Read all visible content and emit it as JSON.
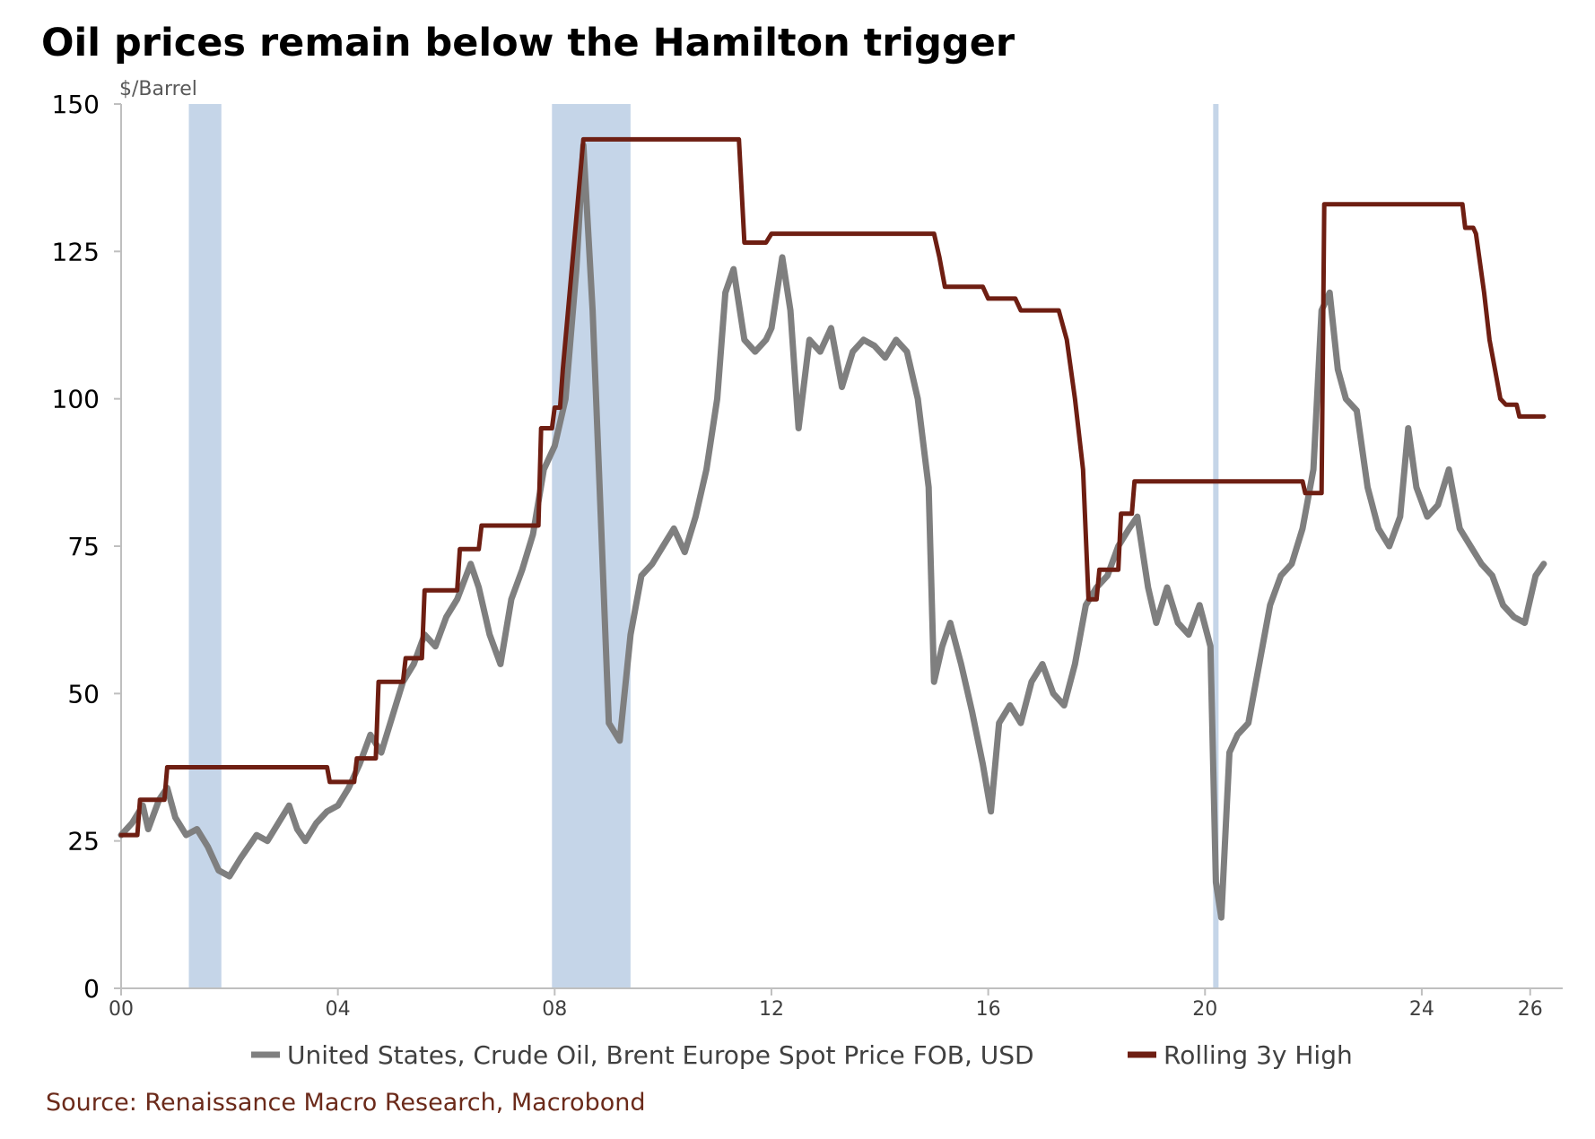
{
  "chart_data": {
    "type": "line",
    "title": "Oil prices remain below the Hamilton trigger",
    "ylabel": "$/Barrel",
    "xlabel": "",
    "ylim": [
      0,
      150
    ],
    "xlim": [
      2000,
      2026.6
    ],
    "yticks": [
      {
        "value": 0,
        "label": "0"
      },
      {
        "value": 25,
        "label": "25"
      },
      {
        "value": 50,
        "label": "50"
      },
      {
        "value": 75,
        "label": "75"
      },
      {
        "value": 100,
        "label": "100"
      },
      {
        "value": 125,
        "label": "125"
      },
      {
        "value": 150,
        "label": "150"
      }
    ],
    "xticks": [
      {
        "value": 2000,
        "label": "00"
      },
      {
        "value": 2004,
        "label": "04"
      },
      {
        "value": 2008,
        "label": "08"
      },
      {
        "value": 2012,
        "label": "12"
      },
      {
        "value": 2016,
        "label": "16"
      },
      {
        "value": 2020,
        "label": "20"
      },
      {
        "value": 2024,
        "label": "24"
      },
      {
        "value": 2026,
        "label": "26"
      }
    ],
    "recessions": [
      {
        "start": 2001.25,
        "end": 2001.85
      },
      {
        "start": 2007.95,
        "end": 2009.4
      },
      {
        "start": 2020.15,
        "end": 2020.25
      }
    ],
    "series": [
      {
        "name": "United States, Crude Oil, Brent Europe Spot Price FOB, USD",
        "color": "#7f7f7f",
        "x": [
          2000.0,
          2000.2,
          2000.4,
          2000.5,
          2000.7,
          2000.85,
          2001.0,
          2001.2,
          2001.4,
          2001.6,
          2001.8,
          2002.0,
          2002.2,
          2002.5,
          2002.7,
          2002.9,
          2003.1,
          2003.25,
          2003.4,
          2003.6,
          2003.8,
          2004.0,
          2004.2,
          2004.4,
          2004.6,
          2004.8,
          2005.0,
          2005.2,
          2005.4,
          2005.6,
          2005.8,
          2006.0,
          2006.2,
          2006.45,
          2006.6,
          2006.8,
          2007.0,
          2007.2,
          2007.4,
          2007.6,
          2007.8,
          2008.0,
          2008.2,
          2008.4,
          2008.53,
          2008.7,
          2008.85,
          2009.0,
          2009.2,
          2009.4,
          2009.6,
          2009.8,
          2010.0,
          2010.2,
          2010.4,
          2010.6,
          2010.8,
          2011.0,
          2011.15,
          2011.3,
          2011.5,
          2011.7,
          2011.9,
          2012.0,
          2012.2,
          2012.35,
          2012.5,
          2012.7,
          2012.9,
          2013.1,
          2013.3,
          2013.5,
          2013.7,
          2013.9,
          2014.1,
          2014.3,
          2014.5,
          2014.7,
          2014.9,
          2015.0,
          2015.15,
          2015.3,
          2015.5,
          2015.7,
          2015.9,
          2016.05,
          2016.2,
          2016.4,
          2016.6,
          2016.8,
          2017.0,
          2017.2,
          2017.4,
          2017.6,
          2017.8,
          2018.0,
          2018.2,
          2018.4,
          2018.6,
          2018.75,
          2018.95,
          2019.1,
          2019.3,
          2019.5,
          2019.7,
          2019.9,
          2020.1,
          2020.2,
          2020.3,
          2020.45,
          2020.6,
          2020.8,
          2021.0,
          2021.2,
          2021.4,
          2021.6,
          2021.8,
          2022.0,
          2022.15,
          2022.3,
          2022.45,
          2022.6,
          2022.8,
          2023.0,
          2023.2,
          2023.4,
          2023.6,
          2023.75,
          2023.9,
          2024.1,
          2024.3,
          2024.5,
          2024.7,
          2024.9,
          2025.1,
          2025.3,
          2025.5,
          2025.7,
          2025.9,
          2026.1,
          2026.25
        ],
        "values": [
          26,
          28,
          31,
          27,
          32,
          34,
          29,
          26,
          27,
          24,
          20,
          19,
          22,
          26,
          25,
          28,
          31,
          27,
          25,
          28,
          30,
          31,
          34,
          38,
          43,
          40,
          46,
          52,
          55,
          60,
          58,
          63,
          66,
          72,
          68,
          60,
          55,
          66,
          71,
          77,
          88,
          92,
          100,
          122,
          143,
          115,
          80,
          45,
          42,
          60,
          70,
          72,
          75,
          78,
          74,
          80,
          88,
          100,
          118,
          122,
          110,
          108,
          110,
          112,
          124,
          115,
          95,
          110,
          108,
          112,
          102,
          108,
          110,
          109,
          107,
          110,
          108,
          100,
          85,
          52,
          58,
          62,
          55,
          47,
          38,
          30,
          45,
          48,
          45,
          52,
          55,
          50,
          48,
          55,
          65,
          68,
          70,
          75,
          78,
          80,
          68,
          62,
          68,
          62,
          60,
          65,
          58,
          18,
          12,
          40,
          43,
          45,
          55,
          65,
          70,
          72,
          78,
          88,
          115,
          118,
          105,
          100,
          98,
          85,
          78,
          75,
          80,
          95,
          85,
          80,
          82,
          88,
          78,
          75,
          72,
          70,
          65,
          63,
          62,
          70,
          72
        ]
      },
      {
        "name": "Rolling 3y High",
        "color": "#6e1e12",
        "x": [
          2000.0,
          2000.3,
          2000.35,
          2000.8,
          2000.85,
          2003.8,
          2003.85,
          2004.3,
          2004.35,
          2004.7,
          2004.75,
          2005.2,
          2005.25,
          2005.55,
          2005.6,
          2006.2,
          2006.25,
          2006.6,
          2006.65,
          2007.7,
          2007.75,
          2007.95,
          2008.0,
          2008.1,
          2008.15,
          2008.53,
          2011.4,
          2011.5,
          2011.9,
          2012.0,
          2015.0,
          2015.1,
          2015.2,
          2015.9,
          2016.0,
          2016.5,
          2016.6,
          2017.3,
          2017.45,
          2017.6,
          2017.75,
          2017.85,
          2018.0,
          2018.05,
          2018.4,
          2018.45,
          2018.65,
          2018.7,
          2021.8,
          2021.85,
          2022.15,
          2022.2,
          2024.75,
          2024.8,
          2024.95,
          2025.0,
          2025.15,
          2025.25,
          2025.35,
          2025.45,
          2025.55,
          2025.75,
          2025.8,
          2026.25
        ],
        "values": [
          26,
          26,
          32,
          32,
          37.5,
          37.5,
          35,
          35,
          39,
          39,
          52,
          52,
          56,
          56,
          67.5,
          67.5,
          74.5,
          74.5,
          78.5,
          78.5,
          95,
          95,
          98.5,
          98.5,
          105,
          144,
          144,
          126.5,
          126.5,
          128,
          128,
          124,
          119,
          119,
          117,
          117,
          115,
          115,
          110,
          100,
          88,
          66,
          66,
          71,
          71,
          80.5,
          80.5,
          86,
          86,
          84,
          84,
          133,
          133,
          129,
          129,
          128,
          118,
          110,
          105,
          100,
          99,
          99,
          97,
          97
        ]
      }
    ]
  },
  "legend": {
    "items": [
      {
        "label": "United States, Crude Oil, Brent Europe Spot Price FOB, USD",
        "color": "#7f7f7f"
      },
      {
        "label": "Rolling 3y High",
        "color": "#6e1e12"
      }
    ]
  },
  "source": "Source: Renaissance Macro Research, Macrobond"
}
